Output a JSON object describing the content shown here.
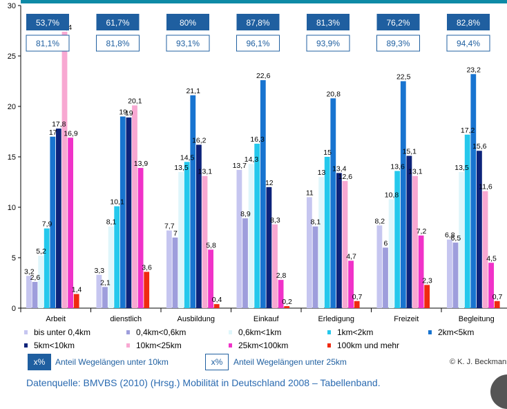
{
  "chart_data": {
    "type": "bar",
    "categories": [
      "Arbeit",
      "dienstlich",
      "Ausbildung",
      "Einkauf",
      "Erledigung",
      "Freizeit",
      "Begleitung"
    ],
    "ylim": [
      0,
      30
    ],
    "yticks": [
      0,
      5,
      10,
      15,
      20,
      25,
      30
    ],
    "grid": false,
    "series": [
      {
        "name": "bis unter 0,4km",
        "color": "#c6c6f0",
        "values": [
          3.2,
          3.3,
          7.7,
          13.7,
          11,
          8.2,
          6.8
        ],
        "labels": [
          "3,2",
          "3,3",
          "7,7",
          "13,7",
          "11",
          "8,2",
          "6,8"
        ]
      },
      {
        "name": "0,4km<0,6km",
        "color": "#9e9edc",
        "values": [
          2.6,
          2.1,
          7,
          8.9,
          8.1,
          6,
          6.5
        ],
        "labels": [
          "2,6",
          "2,1",
          "7",
          "8,9",
          "8,1",
          "6",
          "6,5"
        ]
      },
      {
        "name": "0,6km<1km",
        "color": "#dff6fb",
        "values": [
          5.2,
          8.1,
          13.5,
          14.3,
          13,
          10.8,
          13.5
        ],
        "labels": [
          "5,2",
          "8,1",
          "13,5",
          "14,3",
          "13",
          "10,8",
          "13,5"
        ]
      },
      {
        "name": "1km<2km",
        "color": "#25c8ec",
        "values": [
          7.9,
          10.1,
          14.5,
          16.3,
          15,
          13.6,
          17.2
        ],
        "labels": [
          "7,9",
          "10,1",
          "14,5",
          "16,3",
          "15",
          "13,6",
          "17,2"
        ]
      },
      {
        "name": "2km<5km",
        "color": "#1874d0",
        "values": [
          17,
          19,
          21.1,
          22.6,
          20.8,
          22.5,
          23.2
        ],
        "labels": [
          "17",
          "19",
          "21,1",
          "22,6",
          "20,8",
          "22,5",
          "23,2"
        ]
      },
      {
        "name": "5km<10km",
        "color": "#0d237a",
        "values": [
          17.8,
          18.9,
          16.2,
          12,
          13.4,
          15.1,
          15.6
        ],
        "labels": [
          "17,8",
          "19",
          "16,2",
          "12",
          "13,4",
          "15,1",
          "15,6"
        ]
      },
      {
        "name": "10km<25km",
        "color": "#f8a8d2",
        "values": [
          27.4,
          20.1,
          13.1,
          8.3,
          12.6,
          13.1,
          11.6
        ],
        "labels": [
          "27,4",
          "20,1",
          "13,1",
          "8,3",
          "12,6",
          "13,1",
          "11,6"
        ]
      },
      {
        "name": "25km<100km",
        "color": "#f032c8",
        "values": [
          16.9,
          13.9,
          5.8,
          2.8,
          4.7,
          7.2,
          4.5
        ],
        "labels": [
          "16,9",
          "13,9",
          "5,8",
          "2,8",
          "4,7",
          "7,2",
          "4,5"
        ]
      },
      {
        "name": "100km und mehr",
        "color": "#f02a10",
        "values": [
          1.4,
          3.6,
          0.4,
          0.2,
          0.7,
          2.3,
          0.7
        ],
        "labels": [
          "1,4",
          "3,6",
          "0,4",
          "0,2",
          "0,7",
          "2,3",
          "0,7"
        ]
      }
    ],
    "share_under_10km": [
      "53,7%",
      "61,7%",
      "80%",
      "87,8%",
      "81,3%",
      "76,2%",
      "82,8%"
    ],
    "share_under_25km": [
      "81,1%",
      "81,8%",
      "93,1%",
      "96,1%",
      "93,9%",
      "89,3%",
      "94,4%"
    ]
  },
  "key": {
    "box1": "x%",
    "text1": "Anteil Wegelängen unter 10km",
    "box2": "x%",
    "text2": "Anteil Wegelängen unter 25km"
  },
  "copyright": "© K. J. Beckmann",
  "source": "Datenquelle: BMVBS (2010) (Hrsg.) Mobilität in Deutschland 2008 – Tabellenband.",
  "colors": {
    "share_box_fill": "#1f5fa0",
    "share_box_outline": "#1f5fa0",
    "header_band": "#0e8aa6"
  }
}
